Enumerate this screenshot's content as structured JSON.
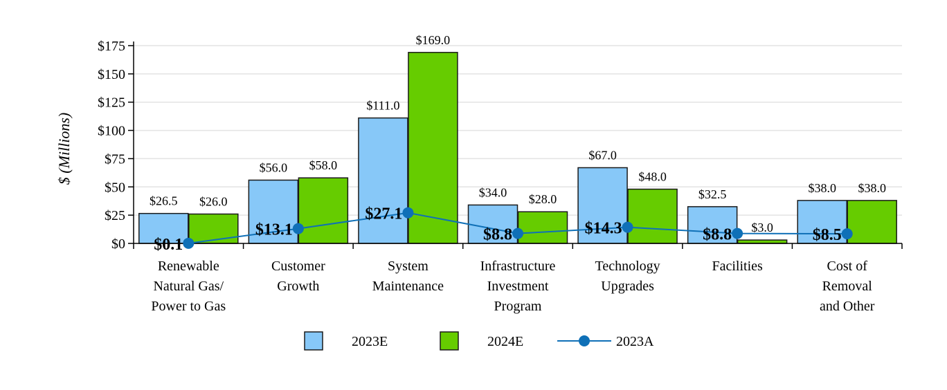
{
  "chart_data": {
    "type": "bar",
    "title": "",
    "xlabel": "",
    "ylabel": "$ (Millions)",
    "ylim": [
      0,
      175
    ],
    "yticks": [
      0,
      25,
      50,
      75,
      100,
      125,
      150,
      175
    ],
    "ytick_labels": [
      "$0",
      "$25",
      "$50",
      "$75",
      "$100",
      "$125",
      "$150",
      "$175"
    ],
    "grid": true,
    "legend_position": "bottom-center",
    "categories": [
      [
        "Renewable",
        "Natural Gas/",
        "Power to Gas"
      ],
      [
        "Customer",
        "Growth"
      ],
      [
        "System",
        "Maintenance"
      ],
      [
        "Infrastructure",
        "Investment",
        "Program"
      ],
      [
        "Technology",
        "Upgrades"
      ],
      [
        "Facilities"
      ],
      [
        "Cost of",
        "Removal",
        "and Other"
      ]
    ],
    "series": [
      {
        "name": "2023E",
        "type": "bar",
        "color": "#87c8f8",
        "values": [
          26.5,
          56.0,
          111.0,
          34.0,
          67.0,
          32.5,
          38.0
        ],
        "labels": [
          "$26.5",
          "$56.0",
          "$111.0",
          "$34.0",
          "$67.0",
          "$32.5",
          "$38.0"
        ]
      },
      {
        "name": "2024E",
        "type": "bar",
        "color": "#66cc00",
        "values": [
          26.0,
          58.0,
          169.0,
          28.0,
          48.0,
          3.0,
          38.0
        ],
        "labels": [
          "$26.0",
          "$58.0",
          "$169.0",
          "$28.0",
          "$48.0",
          "$3.0",
          "$38.0"
        ]
      },
      {
        "name": "2023A",
        "type": "line",
        "color": "#0f70b7",
        "values": [
          0.1,
          13.1,
          27.1,
          8.8,
          14.3,
          8.8,
          8.5
        ],
        "labels": [
          "$0.1",
          "$13.1",
          "$27.1",
          "$8.8",
          "$14.3",
          "$8.8",
          "$8.5"
        ]
      }
    ]
  }
}
